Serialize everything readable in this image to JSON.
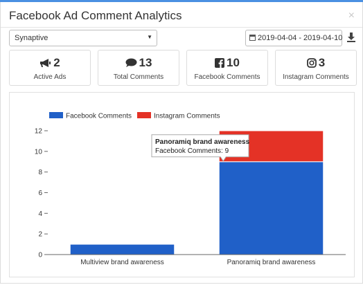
{
  "header": {
    "title": "Facebook Ad Comment Analytics",
    "close_symbol": "×"
  },
  "filters": {
    "account_select_value": "Synaptive",
    "date_range": "2019-04-04 - 2019-04-10"
  },
  "stats": [
    {
      "icon": "megaphone-icon",
      "value": "2",
      "label": "Active Ads"
    },
    {
      "icon": "comments-icon",
      "value": "13",
      "label": "Total Comments"
    },
    {
      "icon": "facebook-icon",
      "value": "10",
      "label": "Facebook Comments"
    },
    {
      "icon": "instagram-icon",
      "value": "3",
      "label": "Instagram Comments"
    }
  ],
  "colors": {
    "facebook": "#2060c8",
    "instagram": "#e43226",
    "accent": "#4a90e2"
  },
  "chart_data": {
    "type": "bar",
    "stacked": true,
    "categories": [
      "Multiview brand awareness",
      "Panoramiq brand awareness"
    ],
    "series": [
      {
        "name": "Facebook Comments",
        "values": [
          1,
          9
        ]
      },
      {
        "name": "Instagram Comments",
        "values": [
          0,
          3
        ]
      }
    ],
    "ylim": [
      0,
      12
    ],
    "yticks": [
      0,
      2,
      4,
      6,
      8,
      10,
      12
    ],
    "legend_position": "top-left",
    "grid": false,
    "tooltip": {
      "title": "Panoramiq brand awareness",
      "text": "Facebook Comments: 9"
    }
  }
}
